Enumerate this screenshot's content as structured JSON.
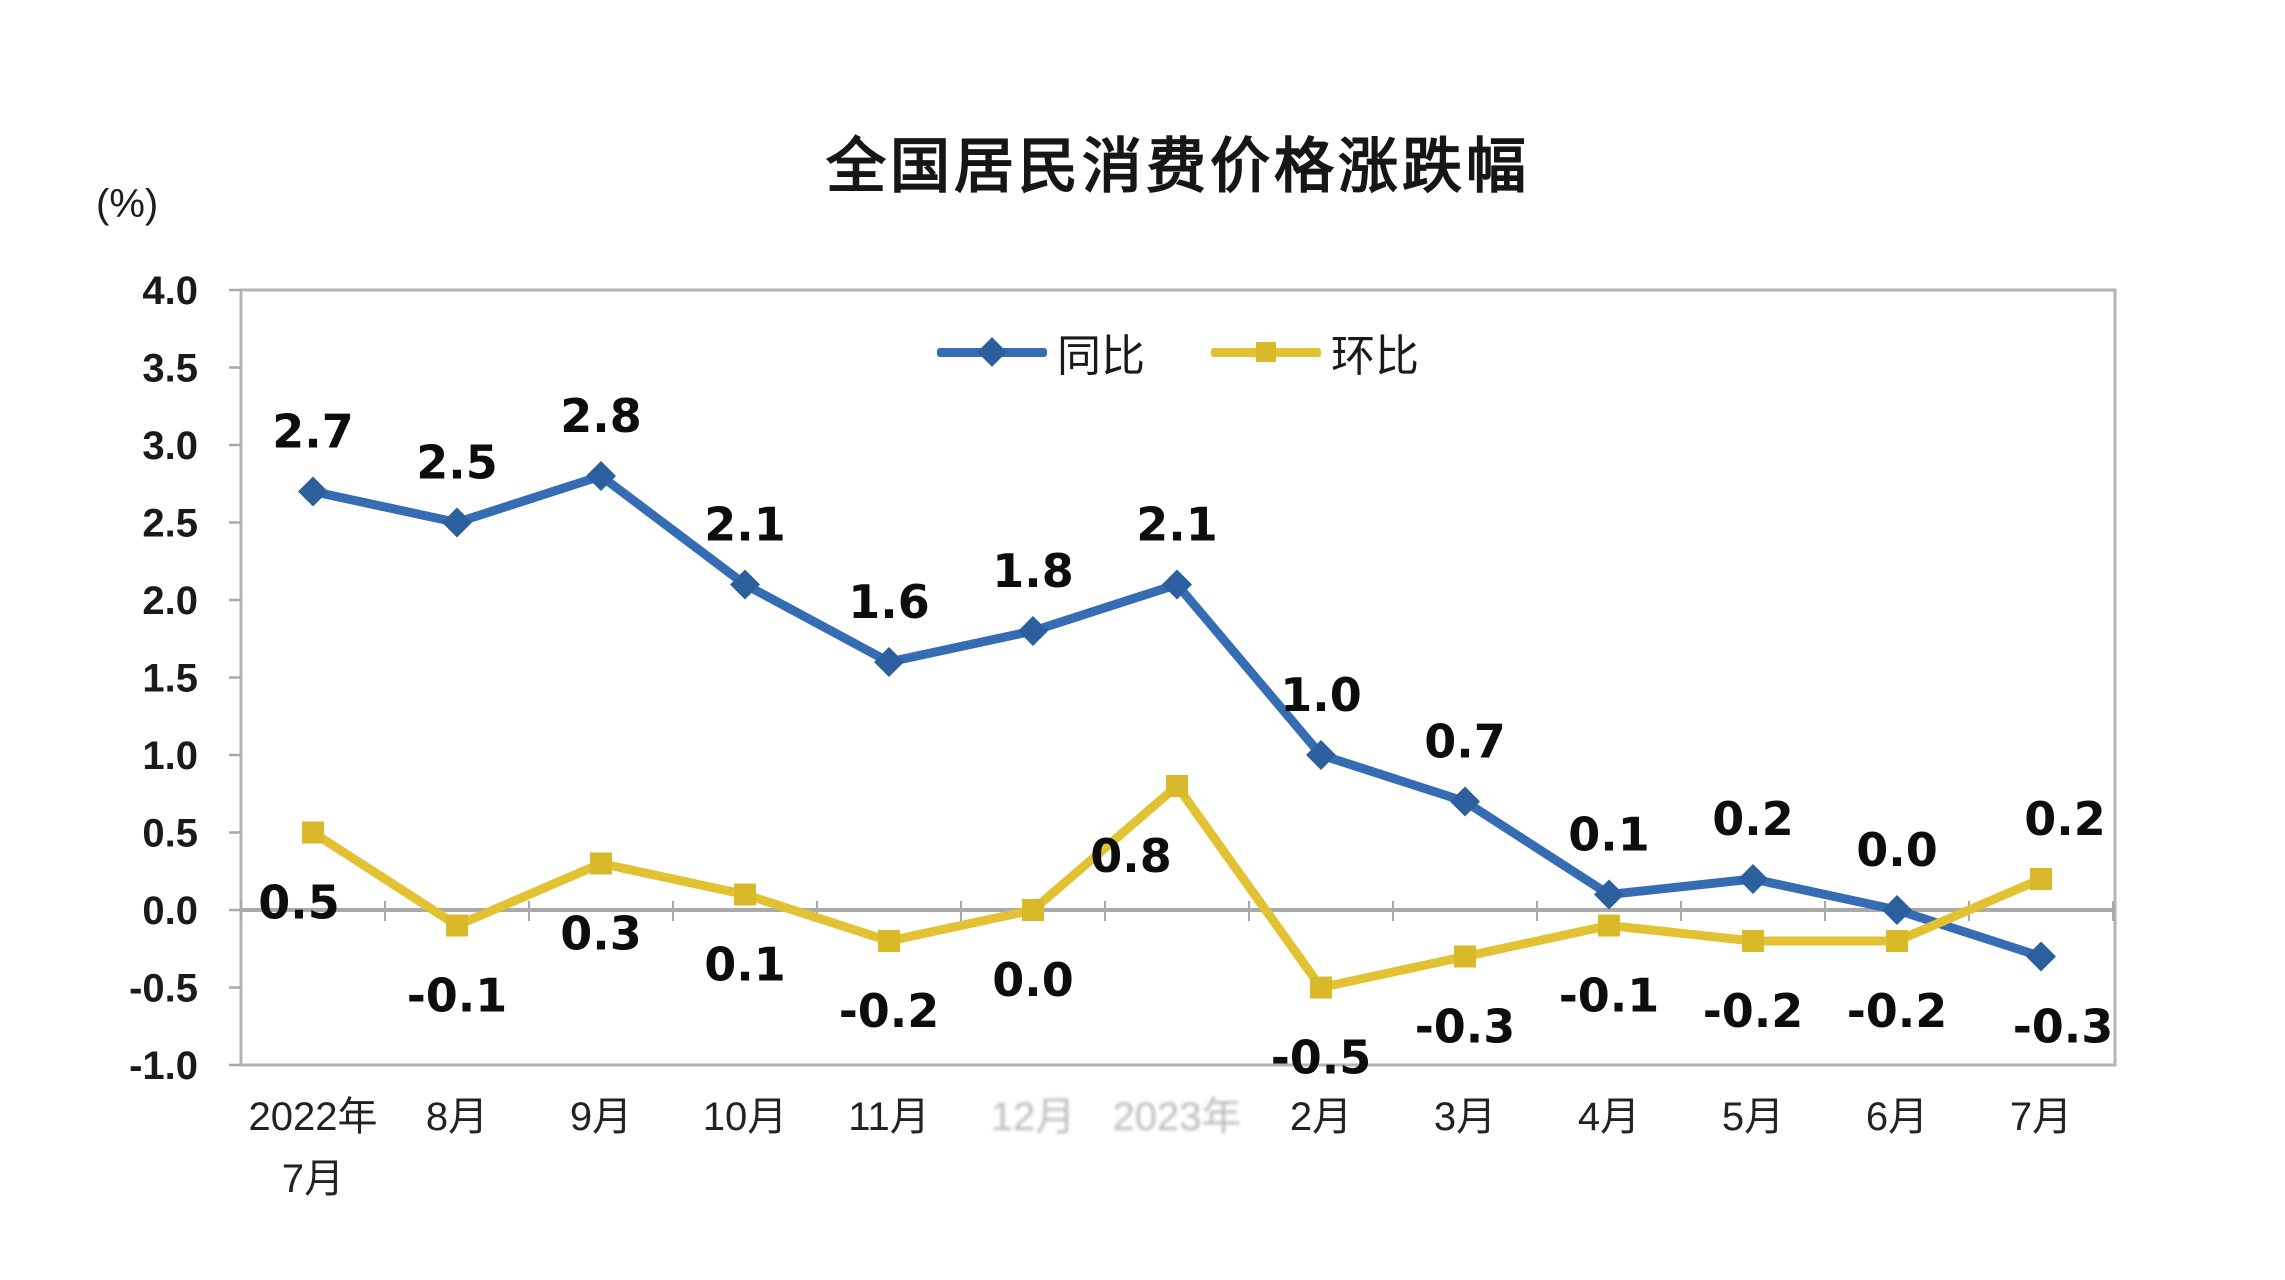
{
  "title": "全国居民消费价格涨跌幅",
  "y_axis_unit": "(%)",
  "chart_data": {
    "type": "line",
    "title": "全国居民消费价格涨跌幅",
    "ylabel": "(%)",
    "xlabel": "",
    "categories": [
      "2022年\n7月",
      "8月",
      "9月",
      "10月",
      "11月",
      "12月",
      "2023年",
      "2月",
      "3月",
      "4月",
      "5月",
      "6月",
      "7月"
    ],
    "faded_category_indices": [
      5,
      6
    ],
    "series": [
      {
        "name": "同比",
        "marker": "diamond",
        "color": "#366CB3",
        "marker_color": "#2C5F9E",
        "values": [
          2.7,
          2.5,
          2.8,
          2.1,
          1.6,
          1.8,
          2.1,
          1.0,
          0.7,
          0.1,
          0.2,
          0.0,
          -0.3
        ],
        "label_position": "above"
      },
      {
        "name": "环比",
        "marker": "square",
        "color": "#E2C233",
        "marker_color": "#D9B82A",
        "values": [
          0.5,
          -0.1,
          0.3,
          0.1,
          -0.2,
          0.0,
          0.8,
          -0.5,
          -0.3,
          -0.1,
          -0.2,
          -0.2,
          0.2
        ],
        "label_position": "below"
      }
    ],
    "ylim": [
      -1.0,
      4.0
    ],
    "ytick_step": 0.5,
    "ytick_labels": [
      "4.0",
      "3.5",
      "3.0",
      "2.5",
      "2.0",
      "1.5",
      "1.0",
      "0.5",
      "0.0",
      "-0.5",
      "-1.0"
    ],
    "legend_position": "top-center",
    "grid": false,
    "axis_color": "#A9A9A9",
    "border_color": "#B3B3B3",
    "data_label_color": "#0d0d0d"
  }
}
